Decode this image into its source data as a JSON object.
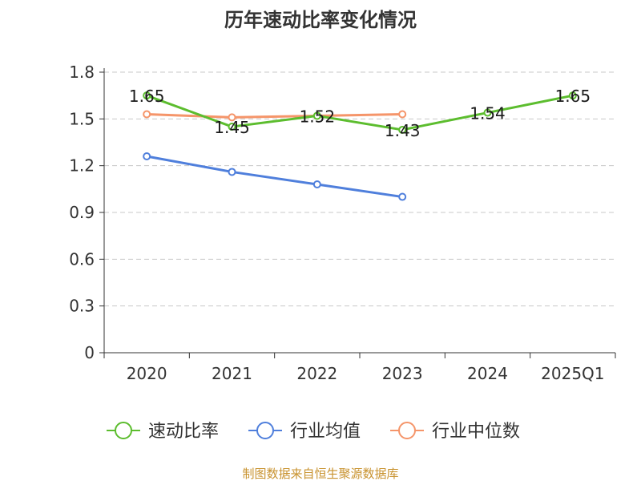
{
  "chart_data": {
    "type": "line",
    "title": "历年速动比率变化情况",
    "categories": [
      "2020",
      "2021",
      "2022",
      "2023",
      "2024",
      "2025Q1"
    ],
    "y_ticks": [
      "0",
      "0.3",
      "0.6",
      "0.9",
      "1.2",
      "1.5",
      "1.8"
    ],
    "ylim": [
      0,
      1.8
    ],
    "grid": true,
    "legend_position": "bottom",
    "series": [
      {
        "name": "速动比率",
        "color": "#5cbd2e",
        "values": [
          1.65,
          1.45,
          1.52,
          1.43,
          1.54,
          1.65
        ],
        "labels": [
          "1.65",
          "1.45",
          "1.52",
          "1.43",
          "1.54",
          "1.65"
        ]
      },
      {
        "name": "行业均值",
        "color": "#4f7fdc",
        "values": [
          1.26,
          1.16,
          1.08,
          1.0,
          null,
          null
        ]
      },
      {
        "name": "行业中位数",
        "color": "#f5956a",
        "values": [
          1.53,
          1.51,
          1.52,
          1.53,
          null,
          null
        ]
      }
    ]
  },
  "source": "制图数据来自恒生聚源数据库"
}
